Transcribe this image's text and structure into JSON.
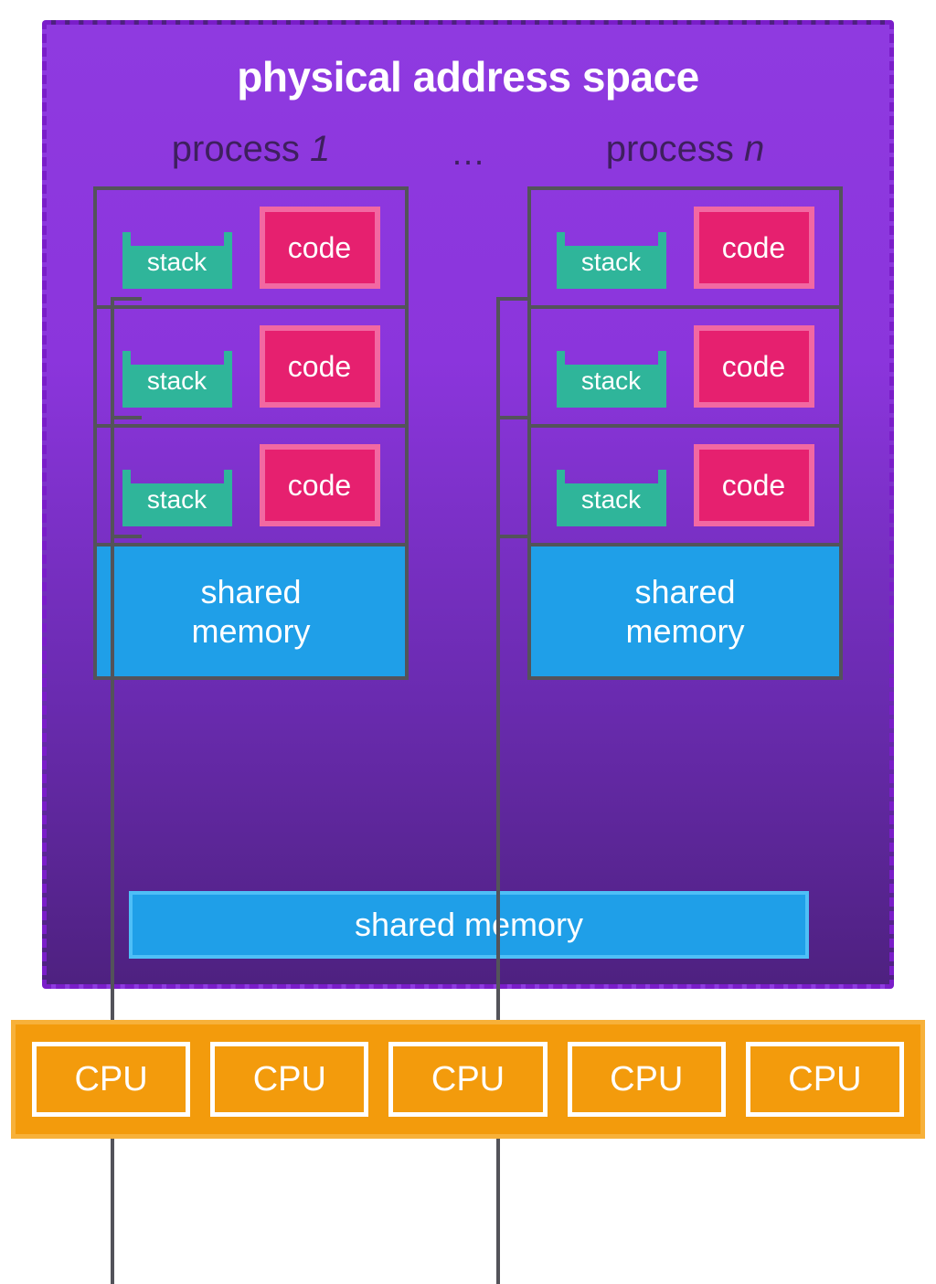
{
  "type": "diagram",
  "title": "physical address space",
  "colors": {
    "bg_gradient_top": "#8f3ae0",
    "bg_gradient_bottom": "#4e2180",
    "dashed_border": "#7a1dc9",
    "process_border": "#53535a",
    "stack_fill": "#2fb59a",
    "code_fill": "#e6206f",
    "code_border": "#f268a2",
    "shared_mem": "#1f9fe8",
    "shared_mem_border": "#4ebff7",
    "cpu_bar": "#f39b0c",
    "cpu_bar_border": "#f7b13a",
    "text_white": "#ffffff",
    "label_dark": "#3e1f5e"
  },
  "fonts": {
    "title_size": 46,
    "process_label_size": 40,
    "stack_code_size": 30,
    "shared_mem_size": 36,
    "cpu_size": 38
  },
  "processes": {
    "left": {
      "label_prefix": "process ",
      "label_num": "1"
    },
    "ellipsis": "…",
    "right": {
      "label_prefix": "process ",
      "label_var": "n"
    }
  },
  "thread": {
    "stack_label": "stack",
    "code_label": "code",
    "count_per_process": 3
  },
  "shared_memory_inner": "shared\nmemory",
  "shared_memory_inner_l1": "shared",
  "shared_memory_inner_l2": "memory",
  "shared_memory_bottom": "shared memory",
  "cpu": {
    "label": "CPU",
    "count": 5
  }
}
